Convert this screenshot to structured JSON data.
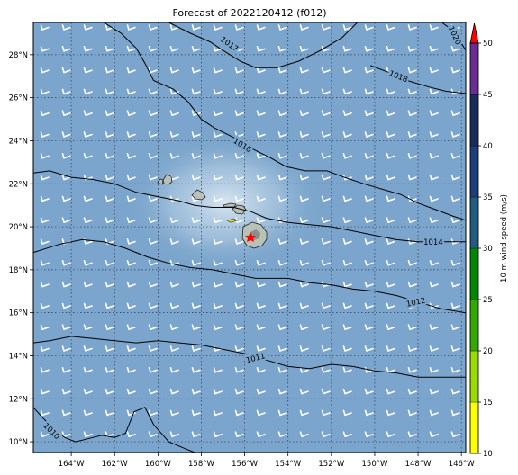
{
  "map": {
    "title": "Forecast of 2022120412 (f012)",
    "colors": {
      "ocean": "#7ba5cc",
      "halo": "#c9dcec",
      "grid": "#2b3a55",
      "barb": "#ffffff",
      "contour": "#000000"
    },
    "lon_range": [
      -165.75,
      -145.8
    ],
    "lat_range": [
      9.5,
      29.5
    ],
    "lon_ticks": [
      {
        "v": -164,
        "label": "164°W"
      },
      {
        "v": -162,
        "label": "162°W"
      },
      {
        "v": -160,
        "label": "160°W"
      },
      {
        "v": -158,
        "label": "158°W"
      },
      {
        "v": -156,
        "label": "156°W"
      },
      {
        "v": -154,
        "label": "154°W"
      },
      {
        "v": -152,
        "label": "152°W"
      },
      {
        "v": -150,
        "label": "150°W"
      },
      {
        "v": -148,
        "label": "148°W"
      },
      {
        "v": -146,
        "label": "146°W"
      }
    ],
    "lat_ticks": [
      {
        "v": 28,
        "label": "28°N"
      },
      {
        "v": 26,
        "label": "26°N"
      },
      {
        "v": 24,
        "label": "24°N"
      },
      {
        "v": 22,
        "label": "22°N"
      },
      {
        "v": 20,
        "label": "20°N"
      },
      {
        "v": 18,
        "label": "18°N"
      },
      {
        "v": 16,
        "label": "16°N"
      },
      {
        "v": 14,
        "label": "14°N"
      },
      {
        "v": 12,
        "label": "12°N"
      },
      {
        "v": 10,
        "label": "10°N"
      }
    ],
    "isobars": [
      {
        "label": "1017",
        "label_lon": -156.7,
        "label_lat": 28.5,
        "label_angle": 35,
        "points": [
          [
            -159.5,
            29.5
          ],
          [
            -158.5,
            29.0
          ],
          [
            -157.6,
            28.6
          ],
          [
            -157.0,
            28.2
          ],
          [
            -156.2,
            27.7
          ],
          [
            -155.5,
            27.4
          ],
          [
            -154.5,
            27.4
          ],
          [
            -153.5,
            27.7
          ],
          [
            -152.5,
            28.2
          ],
          [
            -151.5,
            28.8
          ],
          [
            -150.8,
            29.5
          ]
        ]
      },
      {
        "label": "1018",
        "label_lon": -148.9,
        "label_lat": 27.0,
        "label_angle": 22,
        "points": [
          [
            -150.2,
            27.5
          ],
          [
            -149.4,
            27.2
          ],
          [
            -148.5,
            26.8
          ],
          [
            -147.5,
            26.5
          ],
          [
            -146.7,
            26.3
          ],
          [
            -145.8,
            26.2
          ]
        ]
      },
      {
        "label": "1020",
        "label_lon": -146.3,
        "label_lat": 28.9,
        "label_angle": 65,
        "points": [
          [
            -146.9,
            29.5
          ],
          [
            -146.5,
            29.2
          ],
          [
            -146.1,
            28.7
          ],
          [
            -145.8,
            28.2
          ]
        ]
      },
      {
        "label": "1016",
        "label_lon": -156.1,
        "label_lat": 23.8,
        "label_angle": 32,
        "points": [
          [
            -162.5,
            29.5
          ],
          [
            -161.7,
            29.0
          ],
          [
            -161.0,
            28.3
          ],
          [
            -160.6,
            27.6
          ],
          [
            -160.2,
            26.8
          ],
          [
            -159.3,
            26.4
          ],
          [
            -158.6,
            25.8
          ],
          [
            -158.0,
            25.0
          ],
          [
            -157.4,
            24.6
          ],
          [
            -156.8,
            24.3
          ],
          [
            -156.2,
            24.0
          ],
          [
            -155.6,
            23.6
          ],
          [
            -154.8,
            23.2
          ],
          [
            -154.1,
            22.8
          ],
          [
            -153.2,
            22.6
          ],
          [
            -152.2,
            22.6
          ],
          [
            -151.4,
            22.3
          ],
          [
            -150.5,
            22.0
          ],
          [
            -149.5,
            21.7
          ],
          [
            -148.8,
            21.5
          ],
          [
            -148.0,
            21.1
          ],
          [
            -147.2,
            20.8
          ],
          [
            -146.4,
            20.5
          ],
          [
            -145.8,
            20.3
          ]
        ]
      },
      {
        "label": "1014",
        "label_lon": -147.3,
        "label_lat": 19.3,
        "label_angle": 0,
        "points": [
          [
            -165.75,
            22.5
          ],
          [
            -165.0,
            22.6
          ],
          [
            -164.0,
            22.3
          ],
          [
            -163.0,
            22.2
          ],
          [
            -162.0,
            22.0
          ],
          [
            -161.0,
            21.6
          ],
          [
            -160.0,
            21.4
          ],
          [
            -159.0,
            21.2
          ],
          [
            -158.3,
            21.0
          ],
          [
            -157.5,
            20.9
          ],
          [
            -156.5,
            20.9
          ],
          [
            -155.7,
            20.7
          ],
          [
            -155.0,
            20.4
          ],
          [
            -154.0,
            20.2
          ],
          [
            -153.0,
            20.1
          ],
          [
            -152.0,
            20.0
          ],
          [
            -151.0,
            19.8
          ],
          [
            -150.0,
            19.6
          ],
          [
            -149.0,
            19.4
          ],
          [
            -148.0,
            19.3
          ],
          [
            -146.6,
            19.3
          ],
          [
            -145.8,
            19.3
          ]
        ]
      },
      {
        "label": "1012",
        "label_lon": -148.1,
        "label_lat": 16.5,
        "label_angle": -12,
        "points": [
          [
            -165.75,
            18.8
          ],
          [
            -164.5,
            19.2
          ],
          [
            -163.5,
            19.4
          ],
          [
            -162.5,
            19.3
          ],
          [
            -161.5,
            19.0
          ],
          [
            -160.5,
            18.6
          ],
          [
            -159.5,
            18.3
          ],
          [
            -158.5,
            18.1
          ],
          [
            -157.5,
            18.0
          ],
          [
            -156.5,
            17.8
          ],
          [
            -155.5,
            17.6
          ],
          [
            -154.0,
            17.6
          ],
          [
            -153.0,
            17.4
          ],
          [
            -152.0,
            17.3
          ],
          [
            -151.0,
            17.1
          ],
          [
            -150.0,
            17.0
          ],
          [
            -149.0,
            16.8
          ],
          [
            -148.0,
            16.5
          ],
          [
            -147.0,
            16.2
          ],
          [
            -145.8,
            16.0
          ]
        ]
      },
      {
        "label": "1011",
        "label_lon": -155.5,
        "label_lat": 13.9,
        "label_angle": -15,
        "points": [
          [
            -165.75,
            14.6
          ],
          [
            -165.0,
            14.7
          ],
          [
            -164.0,
            14.9
          ],
          [
            -163.0,
            14.8
          ],
          [
            -162.0,
            14.7
          ],
          [
            -161.0,
            14.6
          ],
          [
            -160.0,
            14.7
          ],
          [
            -159.0,
            14.6
          ],
          [
            -158.0,
            14.5
          ],
          [
            -157.0,
            14.3
          ],
          [
            -156.0,
            14.1
          ],
          [
            -155.0,
            13.8
          ],
          [
            -154.0,
            13.5
          ],
          [
            -153.0,
            13.4
          ],
          [
            -152.0,
            13.6
          ],
          [
            -151.0,
            13.5
          ],
          [
            -150.0,
            13.3
          ],
          [
            -149.0,
            13.2
          ],
          [
            -148.0,
            13.0
          ],
          [
            -147.0,
            13.0
          ],
          [
            -145.8,
            13.0
          ]
        ]
      },
      {
        "label": "1010",
        "label_lon": -164.9,
        "label_lat": 10.5,
        "label_angle": 45,
        "points": [
          [
            -165.75,
            11.6
          ],
          [
            -165.3,
            11.1
          ],
          [
            -164.8,
            10.6
          ],
          [
            -164.3,
            10.2
          ],
          [
            -163.8,
            10.0
          ],
          [
            -163.0,
            10.2
          ],
          [
            -162.6,
            10.3
          ],
          [
            -162.0,
            10.2
          ],
          [
            -161.5,
            10.4
          ],
          [
            -161.1,
            11.4
          ],
          [
            -160.6,
            11.6
          ],
          [
            -160.2,
            10.8
          ],
          [
            -159.5,
            10.0
          ],
          [
            -158.8,
            9.7
          ],
          [
            -158.3,
            9.5
          ]
        ]
      }
    ]
  },
  "colorbar": {
    "label": "10 m wind speed (m/s)",
    "ticks": [
      "10",
      "15",
      "20",
      "25",
      "30",
      "35",
      "40",
      "45",
      "50"
    ],
    "colors": [
      "#ffff00",
      "#99dd00",
      "#33aa00",
      "#008800",
      "#1f5d82",
      "#1a3f7a",
      "#1b2c5a",
      "#6a2c95",
      "#a030b0"
    ],
    "extend_color": "#ff0000"
  }
}
